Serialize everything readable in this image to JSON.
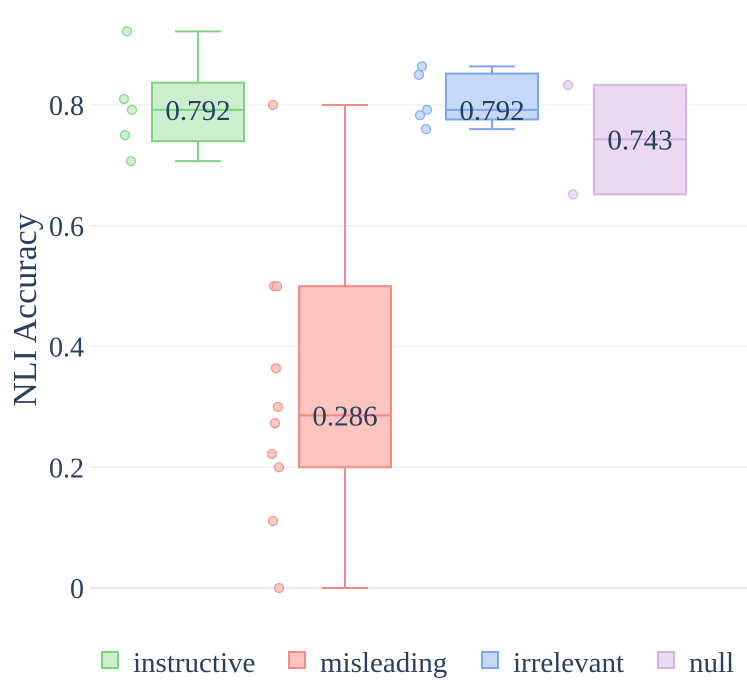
{
  "chart_data": {
    "type": "box",
    "ylabel": "NLI Accuracy",
    "ylim": [
      -0.05,
      0.95
    ],
    "yticks": [
      {
        "value": 0,
        "label": "0"
      },
      {
        "value": 0.2,
        "label": "0.2"
      },
      {
        "value": 0.4,
        "label": "0.4"
      },
      {
        "value": 0.6,
        "label": "0.6"
      },
      {
        "value": 0.8,
        "label": "0.8"
      }
    ],
    "grid": true,
    "legend_position": "bottom",
    "series": [
      {
        "name": "instructive",
        "color": "#7ed47e",
        "fill": "#cdeecd",
        "min": 0.707,
        "q1": 0.74,
        "median": 0.792,
        "q3": 0.837,
        "max": 0.922,
        "median_label": "0.792",
        "points": [
          0.922,
          0.81,
          0.792,
          0.75,
          0.707
        ]
      },
      {
        "name": "misleading",
        "color": "#f28b82",
        "fill": "#ffc4c0",
        "min": 0.0,
        "q1": 0.2,
        "median": 0.286,
        "q3": 0.5,
        "max": 0.8,
        "median_label": "0.286",
        "points": [
          0.8,
          0.5,
          0.5,
          0.364,
          0.3,
          0.273,
          0.222,
          0.2,
          0.111,
          0.0
        ]
      },
      {
        "name": "irrelevant",
        "color": "#7aa7f0",
        "fill": "#c6d9f8",
        "min": 0.76,
        "q1": 0.776,
        "median": 0.792,
        "q3": 0.852,
        "max": 0.864,
        "median_label": "0.792",
        "points": [
          0.864,
          0.85,
          0.792,
          0.783,
          0.76
        ]
      },
      {
        "name": "null",
        "color": "#d4b3e0",
        "fill": "#ead9f1",
        "min": 0.652,
        "q1": 0.652,
        "median": 0.743,
        "q3": 0.833,
        "max": 0.833,
        "median_label": "0.743",
        "points": [
          0.833,
          0.652
        ]
      }
    ]
  }
}
